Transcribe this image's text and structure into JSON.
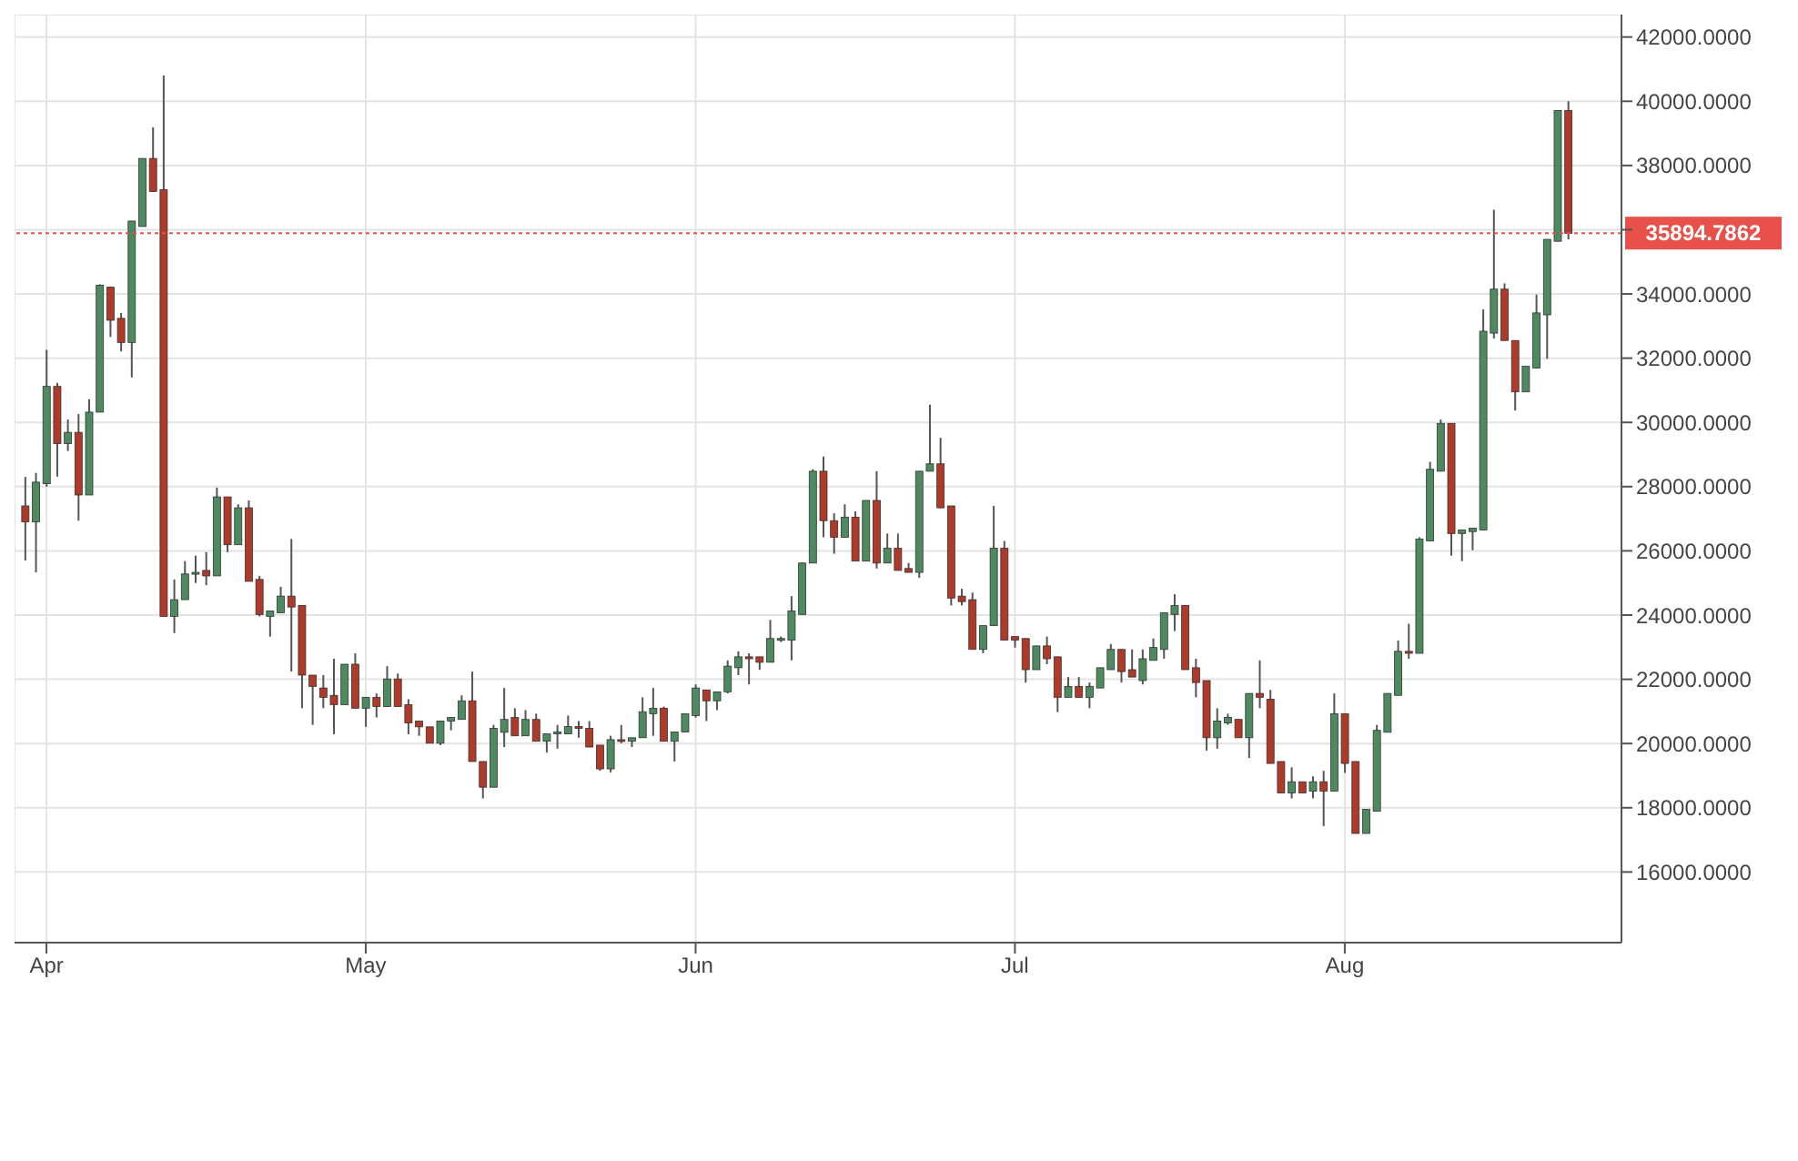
{
  "chart_data": {
    "type": "candlestick",
    "x": [
      "--03-30",
      "--03-31",
      "--04-01",
      "--04-02",
      "--04-03",
      "--04-04",
      "--04-05",
      "--04-06",
      "--04-07",
      "--04-08",
      "--04-09",
      "--04-10",
      "--04-11",
      "--04-12",
      "--04-13",
      "--04-14",
      "--04-15",
      "--04-16",
      "--04-17",
      "--04-18",
      "--04-19",
      "--04-20",
      "--04-21",
      "--04-22",
      "--04-23",
      "--04-24",
      "--04-25",
      "--04-26",
      "--04-27",
      "--04-28",
      "--04-29",
      "--04-30",
      "--05-01",
      "--05-02",
      "--05-03",
      "--05-04",
      "--05-05",
      "--05-06",
      "--05-07",
      "--05-08",
      "--05-09",
      "--05-10",
      "--05-11",
      "--05-12",
      "--05-13",
      "--05-14",
      "--05-15",
      "--05-16",
      "--05-17",
      "--05-18",
      "--05-19",
      "--05-20",
      "--05-21",
      "--05-22",
      "--05-23",
      "--05-24",
      "--05-25",
      "--05-26",
      "--05-27",
      "--05-28",
      "--05-29",
      "--05-30",
      "--05-31",
      "--06-01",
      "--06-02",
      "--06-03",
      "--06-04",
      "--06-05",
      "--06-06",
      "--06-07",
      "--06-08",
      "--06-09",
      "--06-10",
      "--06-11",
      "--06-12",
      "--06-13",
      "--06-14",
      "--06-15",
      "--06-16",
      "--06-17",
      "--06-18",
      "--06-19",
      "--06-20",
      "--06-21",
      "--06-22",
      "--06-23",
      "--06-24",
      "--06-25",
      "--06-26",
      "--06-27",
      "--06-28",
      "--06-29",
      "--06-30",
      "--07-01",
      "--07-02",
      "--07-03",
      "--07-04",
      "--07-05",
      "--07-06",
      "--07-07",
      "--07-08",
      "--07-09",
      "--07-10",
      "--07-11",
      "--07-12",
      "--07-13",
      "--07-14",
      "--07-15",
      "--07-16",
      "--07-17",
      "--07-18",
      "--07-19",
      "--07-20",
      "--07-21",
      "--07-22",
      "--07-23",
      "--07-24",
      "--07-25",
      "--07-26",
      "--07-27",
      "--07-28",
      "--07-29",
      "--07-30",
      "--07-31",
      "--08-01",
      "--08-02",
      "--08-03",
      "--08-04",
      "--08-05",
      "--08-06",
      "--08-07",
      "--08-08",
      "--08-09",
      "--08-10",
      "--08-11",
      "--08-12",
      "--08-13",
      "--08-14",
      "--08-15",
      "--08-16",
      "--08-17",
      "--08-18",
      "--08-19",
      "--08-20",
      "--08-21",
      "--08-22"
    ],
    "ohlc": [
      [
        27400,
        28300,
        25700,
        26900
      ],
      [
        26900,
        28430,
        25330,
        28140
      ],
      [
        28090,
        32260,
        28000,
        31120
      ],
      [
        31120,
        31230,
        28310,
        29340
      ],
      [
        29340,
        30090,
        29110,
        29690
      ],
      [
        29690,
        30260,
        26940,
        27740
      ],
      [
        27740,
        30720,
        27740,
        30320
      ],
      [
        30320,
        34300,
        30320,
        34270
      ],
      [
        34210,
        34210,
        32660,
        33180
      ],
      [
        33240,
        33410,
        32210,
        32490
      ],
      [
        32490,
        36270,
        31400,
        36270
      ],
      [
        36100,
        38220,
        36100,
        38220
      ],
      [
        38220,
        39190,
        37190,
        37190
      ],
      [
        37250,
        40800,
        23960,
        23960
      ],
      [
        23960,
        25110,
        23440,
        24480
      ],
      [
        24480,
        25680,
        24480,
        25280
      ],
      [
        25300,
        25850,
        25000,
        25330
      ],
      [
        25390,
        25960,
        24930,
        25220
      ],
      [
        25220,
        27970,
        25220,
        27680
      ],
      [
        27680,
        27680,
        25960,
        26190
      ],
      [
        26190,
        27450,
        26190,
        27340
      ],
      [
        27340,
        27570,
        25050,
        25050
      ],
      [
        25110,
        25220,
        23960,
        24020
      ],
      [
        23960,
        24130,
        23330,
        24130
      ],
      [
        24070,
        24880,
        24070,
        24590
      ],
      [
        24590,
        26370,
        22240,
        24250
      ],
      [
        24300,
        24300,
        21100,
        22130
      ],
      [
        22130,
        22130,
        20580,
        21780
      ],
      [
        21730,
        22130,
        21100,
        21440
      ],
      [
        21500,
        22640,
        20290,
        21210
      ],
      [
        21210,
        22470,
        21210,
        22470
      ],
      [
        22470,
        22810,
        21100,
        21100
      ],
      [
        21100,
        21440,
        20520,
        21440
      ],
      [
        21440,
        21560,
        20810,
        21150
      ],
      [
        21150,
        22410,
        21150,
        22010
      ],
      [
        22010,
        22180,
        21150,
        21150
      ],
      [
        21210,
        21380,
        20290,
        20640
      ],
      [
        20700,
        20700,
        20240,
        20520
      ],
      [
        20520,
        20520,
        20010,
        20010
      ],
      [
        20010,
        20700,
        19950,
        20700
      ],
      [
        20700,
        20810,
        20410,
        20810
      ],
      [
        20750,
        21500,
        20750,
        21330
      ],
      [
        21330,
        22240,
        19440,
        19440
      ],
      [
        19440,
        19440,
        18290,
        18640
      ],
      [
        18640,
        20580,
        18640,
        20470
      ],
      [
        20350,
        21730,
        19890,
        20750
      ],
      [
        20810,
        21100,
        20240,
        20240
      ],
      [
        20240,
        21040,
        20240,
        20750
      ],
      [
        20750,
        20930,
        20070,
        20070
      ],
      [
        20070,
        20300,
        19720,
        20300
      ],
      [
        20300,
        20580,
        19840,
        20360
      ],
      [
        20300,
        20870,
        20300,
        20530
      ],
      [
        20530,
        20700,
        20180,
        20470
      ],
      [
        20470,
        20700,
        19890,
        19890
      ],
      [
        19950,
        19950,
        19150,
        19210
      ],
      [
        19210,
        20240,
        19100,
        20120
      ],
      [
        20120,
        20580,
        20010,
        20070
      ],
      [
        20070,
        20180,
        19890,
        20180
      ],
      [
        20180,
        21440,
        20180,
        20990
      ],
      [
        20930,
        21730,
        20240,
        21100
      ],
      [
        21100,
        21150,
        20070,
        20070
      ],
      [
        20070,
        20360,
        19440,
        20360
      ],
      [
        20360,
        20930,
        20360,
        20930
      ],
      [
        20870,
        21840,
        20810,
        21730
      ],
      [
        21670,
        21670,
        20700,
        21330
      ],
      [
        21330,
        21610,
        21040,
        21610
      ],
      [
        21610,
        22590,
        21560,
        22410
      ],
      [
        22360,
        22870,
        22130,
        22700
      ],
      [
        22700,
        22810,
        21840,
        22640
      ],
      [
        22700,
        22700,
        22300,
        22530
      ],
      [
        22530,
        23850,
        22530,
        23270
      ],
      [
        23220,
        23330,
        23160,
        23270
      ],
      [
        23220,
        24590,
        22590,
        24130
      ],
      [
        24020,
        25640,
        24020,
        25620
      ],
      [
        25620,
        28540,
        25620,
        28480
      ],
      [
        28480,
        28940,
        26420,
        26940
      ],
      [
        26940,
        27170,
        25910,
        26420
      ],
      [
        26420,
        27450,
        26420,
        27050
      ],
      [
        27050,
        27230,
        25680,
        25680
      ],
      [
        25680,
        27570,
        25680,
        27570
      ],
      [
        27570,
        28480,
        25450,
        25620
      ],
      [
        25620,
        26540,
        25620,
        26080
      ],
      [
        26080,
        26540,
        25390,
        25390
      ],
      [
        25450,
        25620,
        25330,
        25330
      ],
      [
        25330,
        28480,
        25160,
        28480
      ],
      [
        28480,
        30550,
        28480,
        28710
      ],
      [
        28710,
        29520,
        27340,
        27340
      ],
      [
        27400,
        27400,
        24300,
        24530
      ],
      [
        24590,
        24820,
        24300,
        24420
      ],
      [
        24480,
        24700,
        22930,
        22930
      ],
      [
        22930,
        23670,
        22810,
        23670
      ],
      [
        23670,
        27400,
        23670,
        26080
      ],
      [
        26080,
        26310,
        23220,
        23220
      ],
      [
        23330,
        23330,
        22990,
        23220
      ],
      [
        23270,
        23270,
        21900,
        22300
      ],
      [
        22300,
        23040,
        22300,
        23040
      ],
      [
        23040,
        23330,
        22470,
        22640
      ],
      [
        22700,
        22700,
        20980,
        21440
      ],
      [
        21440,
        22070,
        21440,
        21780
      ],
      [
        21780,
        22070,
        21440,
        21440
      ],
      [
        21440,
        21900,
        21100,
        21780
      ],
      [
        21730,
        22360,
        21730,
        22360
      ],
      [
        22300,
        23100,
        22300,
        22930
      ],
      [
        22930,
        22930,
        21900,
        22240
      ],
      [
        22300,
        22930,
        22070,
        22070
      ],
      [
        21960,
        22930,
        21840,
        22640
      ],
      [
        22590,
        23270,
        22590,
        22990
      ],
      [
        22930,
        24070,
        22640,
        24070
      ],
      [
        24020,
        24650,
        23500,
        24300
      ],
      [
        24300,
        24300,
        22300,
        22300
      ],
      [
        22360,
        22640,
        21440,
        21900
      ],
      [
        21960,
        21960,
        19780,
        20180
      ],
      [
        20180,
        21100,
        19840,
        20700
      ],
      [
        20640,
        20930,
        20580,
        20810
      ],
      [
        20750,
        20750,
        20180,
        20180
      ],
      [
        20180,
        21560,
        19550,
        21560
      ],
      [
        21560,
        22590,
        21100,
        21440
      ],
      [
        21380,
        21670,
        19380,
        19380
      ],
      [
        19440,
        19440,
        18460,
        18460
      ],
      [
        18460,
        19260,
        18290,
        18810
      ],
      [
        18810,
        18810,
        18460,
        18460
      ],
      [
        18520,
        18980,
        18290,
        18810
      ],
      [
        18810,
        19150,
        17430,
        18520
      ],
      [
        18520,
        21560,
        18520,
        20930
      ],
      [
        20930,
        20930,
        19090,
        19380
      ],
      [
        19440,
        19440,
        17200,
        17200
      ],
      [
        17200,
        17950,
        17200,
        17950
      ],
      [
        17890,
        20580,
        17890,
        20410
      ],
      [
        20350,
        21560,
        20350,
        21560
      ],
      [
        21500,
        23210,
        21500,
        22870
      ],
      [
        22870,
        23730,
        22640,
        22810
      ],
      [
        22810,
        26420,
        22810,
        26370
      ],
      [
        26310,
        28770,
        26310,
        28540
      ],
      [
        28480,
        30090,
        28480,
        29970
      ],
      [
        29970,
        29970,
        25850,
        26540
      ],
      [
        26540,
        26650,
        25680,
        26650
      ],
      [
        26600,
        26710,
        26020,
        26710
      ],
      [
        26650,
        33520,
        26650,
        32840
      ],
      [
        32780,
        36620,
        32610,
        34150
      ],
      [
        34150,
        34330,
        32550,
        32550
      ],
      [
        32550,
        32550,
        30370,
        30950
      ],
      [
        30950,
        31750,
        30950,
        31750
      ],
      [
        31690,
        33980,
        31690,
        33410
      ],
      [
        33350,
        35700,
        31980,
        35700
      ],
      [
        35640,
        39710,
        35640,
        39710
      ],
      [
        39710,
        40000,
        35700,
        35890
      ]
    ],
    "colors": [
      "#b03a2a",
      "#4e8a60",
      "#4e8a60",
      "#b03a2a",
      "#4e8a60",
      "#b03a2a",
      "#4e8a60",
      "#4e8a60",
      "#b03a2a",
      "#b03a2a",
      "#4e8a60",
      "#4e8a60",
      "#b03a2a",
      "#b03a2a",
      "#4e8a60",
      "#4e8a60",
      "#4e8a60",
      "#b03a2a",
      "#4e8a60",
      "#b03a2a",
      "#4e8a60",
      "#b03a2a",
      "#b03a2a",
      "#4e8a60",
      "#4e8a60",
      "#b03a2a",
      "#b03a2a",
      "#b03a2a",
      "#b03a2a",
      "#b03a2a",
      "#4e8a60",
      "#b03a2a",
      "#4e8a60",
      "#b03a2a",
      "#4e8a60",
      "#b03a2a",
      "#b03a2a",
      "#b03a2a",
      "#b03a2a",
      "#4e8a60",
      "#4e8a60",
      "#4e8a60",
      "#b03a2a",
      "#b03a2a",
      "#4e8a60",
      "#4e8a60",
      "#b03a2a",
      "#4e8a60",
      "#b03a2a",
      "#4e8a60",
      "#4e8a60",
      "#4e8a60",
      "#b03a2a",
      "#b03a2a",
      "#b03a2a",
      "#4e8a60",
      "#b03a2a",
      "#4e8a60",
      "#4e8a60",
      "#4e8a60",
      "#b03a2a",
      "#4e8a60",
      "#4e8a60",
      "#4e8a60",
      "#b03a2a",
      "#4e8a60",
      "#4e8a60",
      "#4e8a60",
      "#b03a2a",
      "#b03a2a",
      "#4e8a60",
      "#4e8a60",
      "#4e8a60",
      "#4e8a60",
      "#4e8a60",
      "#b03a2a",
      "#b03a2a",
      "#4e8a60",
      "#b03a2a",
      "#4e8a60",
      "#b03a2a",
      "#4e8a60",
      "#b03a2a",
      "#b03a2a",
      "#4e8a60",
      "#4e8a60",
      "#b03a2a",
      "#b03a2a",
      "#b03a2a",
      "#b03a2a",
      "#4e8a60",
      "#4e8a60",
      "#b03a2a",
      "#b03a2a",
      "#b03a2a",
      "#4e8a60",
      "#b03a2a",
      "#b03a2a",
      "#4e8a60",
      "#b03a2a",
      "#4e8a60",
      "#4e8a60",
      "#4e8a60",
      "#b03a2a",
      "#b03a2a",
      "#4e8a60",
      "#4e8a60",
      "#4e8a60",
      "#4e8a60",
      "#b03a2a",
      "#b03a2a",
      "#b03a2a",
      "#4e8a60",
      "#4e8a60",
      "#b03a2a",
      "#4e8a60",
      "#b03a2a",
      "#b03a2a",
      "#b03a2a",
      "#4e8a60",
      "#b03a2a",
      "#4e8a60",
      "#b03a2a",
      "#4e8a60",
      "#b03a2a",
      "#b03a2a",
      "#4e8a60",
      "#4e8a60",
      "#4e8a60",
      "#4e8a60",
      "#b03a2a",
      "#4e8a60",
      "#4e8a60",
      "#4e8a60",
      "#b03a2a",
      "#4e8a60",
      "#4e8a60",
      "#4e8a60",
      "#4e8a60",
      "#b03a2a",
      "#b03a2a",
      "#4e8a60",
      "#4e8a60",
      "#4e8a60",
      "#4e8a60",
      "#b03a2a"
    ],
    "xlim": [
      "--03-29",
      "--08-27"
    ],
    "xticks": [
      {
        "value": "--04-01",
        "label": "Apr"
      },
      {
        "value": "--05-01",
        "label": "May"
      },
      {
        "value": "--06-01",
        "label": "Jun"
      },
      {
        "value": "--07-01",
        "label": "Jul"
      },
      {
        "value": "--08-01",
        "label": "Aug"
      }
    ],
    "ylim": [
      13800,
      42700
    ],
    "yticks": [
      {
        "value": 16000,
        "label": "16000.0000"
      },
      {
        "value": 18000,
        "label": "18000.0000"
      },
      {
        "value": 20000,
        "label": "20000.0000"
      },
      {
        "value": 22000,
        "label": "22000.0000"
      },
      {
        "value": 24000,
        "label": "24000.0000"
      },
      {
        "value": 26000,
        "label": "26000.0000"
      },
      {
        "value": 28000,
        "label": "28000.0000"
      },
      {
        "value": 30000,
        "label": "30000.0000"
      },
      {
        "value": 32000,
        "label": "32000.0000"
      },
      {
        "value": 34000,
        "label": "34000.0000"
      },
      {
        "value": 36000,
        "label": null
      },
      {
        "value": 38000,
        "label": "38000.0000"
      },
      {
        "value": 40000,
        "label": "40000.0000"
      },
      {
        "value": 42000,
        "label": "42000.0000"
      }
    ],
    "ref_lines": [
      {
        "axis": "y",
        "value": 35894.7862,
        "label": "35894.7862",
        "color": "#e8504a",
        "line_style": "dotted"
      }
    ],
    "grid": true
  }
}
